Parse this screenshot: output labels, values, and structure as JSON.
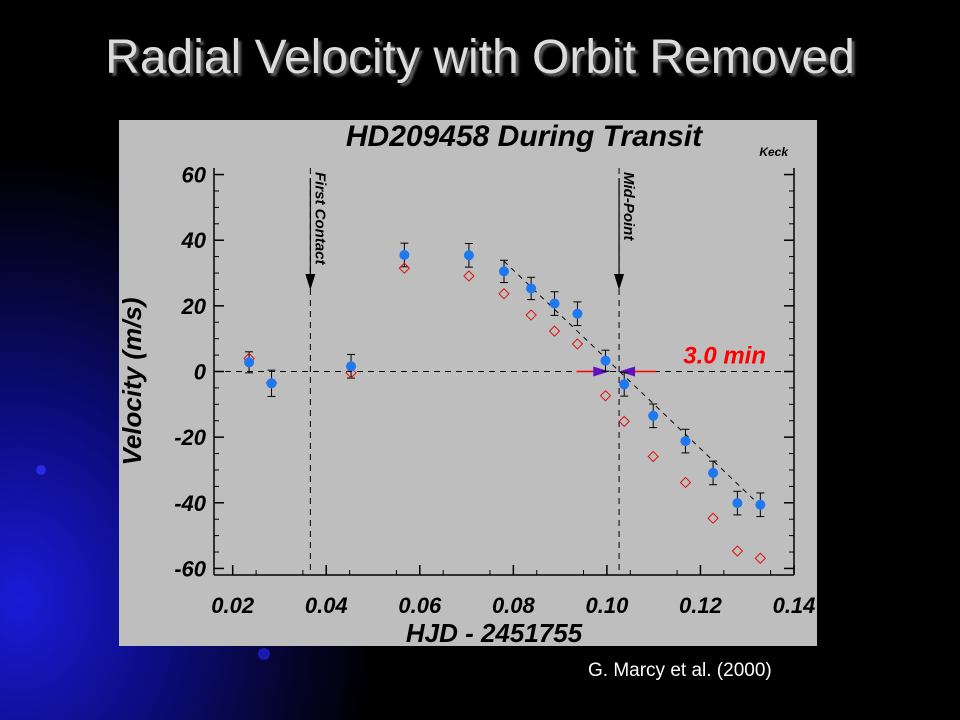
{
  "slide": {
    "title": "Radial Velocity with Orbit Removed",
    "credit": "G. Marcy et al. (2000)"
  },
  "colors": {
    "background": "#000000",
    "panel": "#bebebe",
    "observed": "#1e78f0",
    "model": "#e01010",
    "highlight": "#ff0000",
    "arrow": "#6010c0"
  },
  "chart_data": {
    "type": "scatter",
    "title": "HD209458  During  Transit",
    "subtitle": "Keck",
    "xlabel": "HJD - 2451755",
    "ylabel": "Velocity  (m/s)",
    "xlim": [
      0.016,
      0.14
    ],
    "ylim": [
      -62,
      62
    ],
    "x_ticks": [
      0.02,
      0.04,
      0.06,
      0.08,
      0.1,
      0.12,
      0.14
    ],
    "x_tick_labels": [
      "0.02",
      "0.04",
      "0.06",
      "0.08",
      "0.10",
      "0.12",
      "0.14"
    ],
    "y_ticks": [
      60,
      40,
      20,
      0,
      -20,
      -40,
      -60
    ],
    "y_tick_labels": [
      "60",
      "40",
      "20",
      "0",
      "-20",
      "-40",
      "-60"
    ],
    "grid": false,
    "series": [
      {
        "style": "filled-circle-errorbar",
        "color": "#1e78f0",
        "x": [
          0.0235,
          0.0283,
          0.0453,
          0.0567,
          0.0705,
          0.078,
          0.0838,
          0.0888,
          0.0937,
          0.0997,
          0.1037,
          0.1099,
          0.1168,
          0.1227,
          0.1279,
          0.1328
        ],
        "y": [
          2.8,
          -3.6,
          1.6,
          35.5,
          35.4,
          30.5,
          25.3,
          20.7,
          17.6,
          3.3,
          -3.9,
          -13.5,
          -21.2,
          -30.9,
          -40.1,
          -40.6
        ],
        "err": [
          3.2,
          4.0,
          3.6,
          3.6,
          3.6,
          3.4,
          3.4,
          3.6,
          3.6,
          3.2,
          3.6,
          3.6,
          3.6,
          3.6,
          3.6,
          3.6
        ]
      },
      {
        "style": "open-diamond",
        "color": "#e01010",
        "x": [
          0.0235,
          0.0283,
          0.0453,
          0.0567,
          0.0705,
          0.078,
          0.0838,
          0.0888,
          0.0937,
          0.0997,
          0.1037,
          0.1099,
          0.1168,
          0.1227,
          0.1279,
          0.1328
        ],
        "y": [
          4.0,
          -3.5,
          -0.4,
          31.5,
          29.1,
          23.7,
          17.2,
          12.3,
          8.4,
          -7.4,
          -15.2,
          -25.9,
          -33.8,
          -44.7,
          -54.7,
          -56.9
        ]
      }
    ],
    "trend_line": {
      "x": [
        0.078,
        0.1328
      ],
      "y": [
        33.6,
        -40.9
      ],
      "style": "dashed"
    },
    "zero_line": {
      "y": 0,
      "style": "dashed"
    },
    "vertical_markers": [
      {
        "x": 0.0366,
        "label": "First Contact"
      },
      {
        "x": 0.1026,
        "label": "Mid-Point"
      }
    ],
    "annotation": {
      "text": "3.0 min",
      "color": "#ff0000",
      "arrow_from_left": {
        "start": 0.0935,
        "end": 0.1005
      },
      "arrow_from_right": {
        "start": 0.1105,
        "end": 0.1026
      }
    }
  }
}
